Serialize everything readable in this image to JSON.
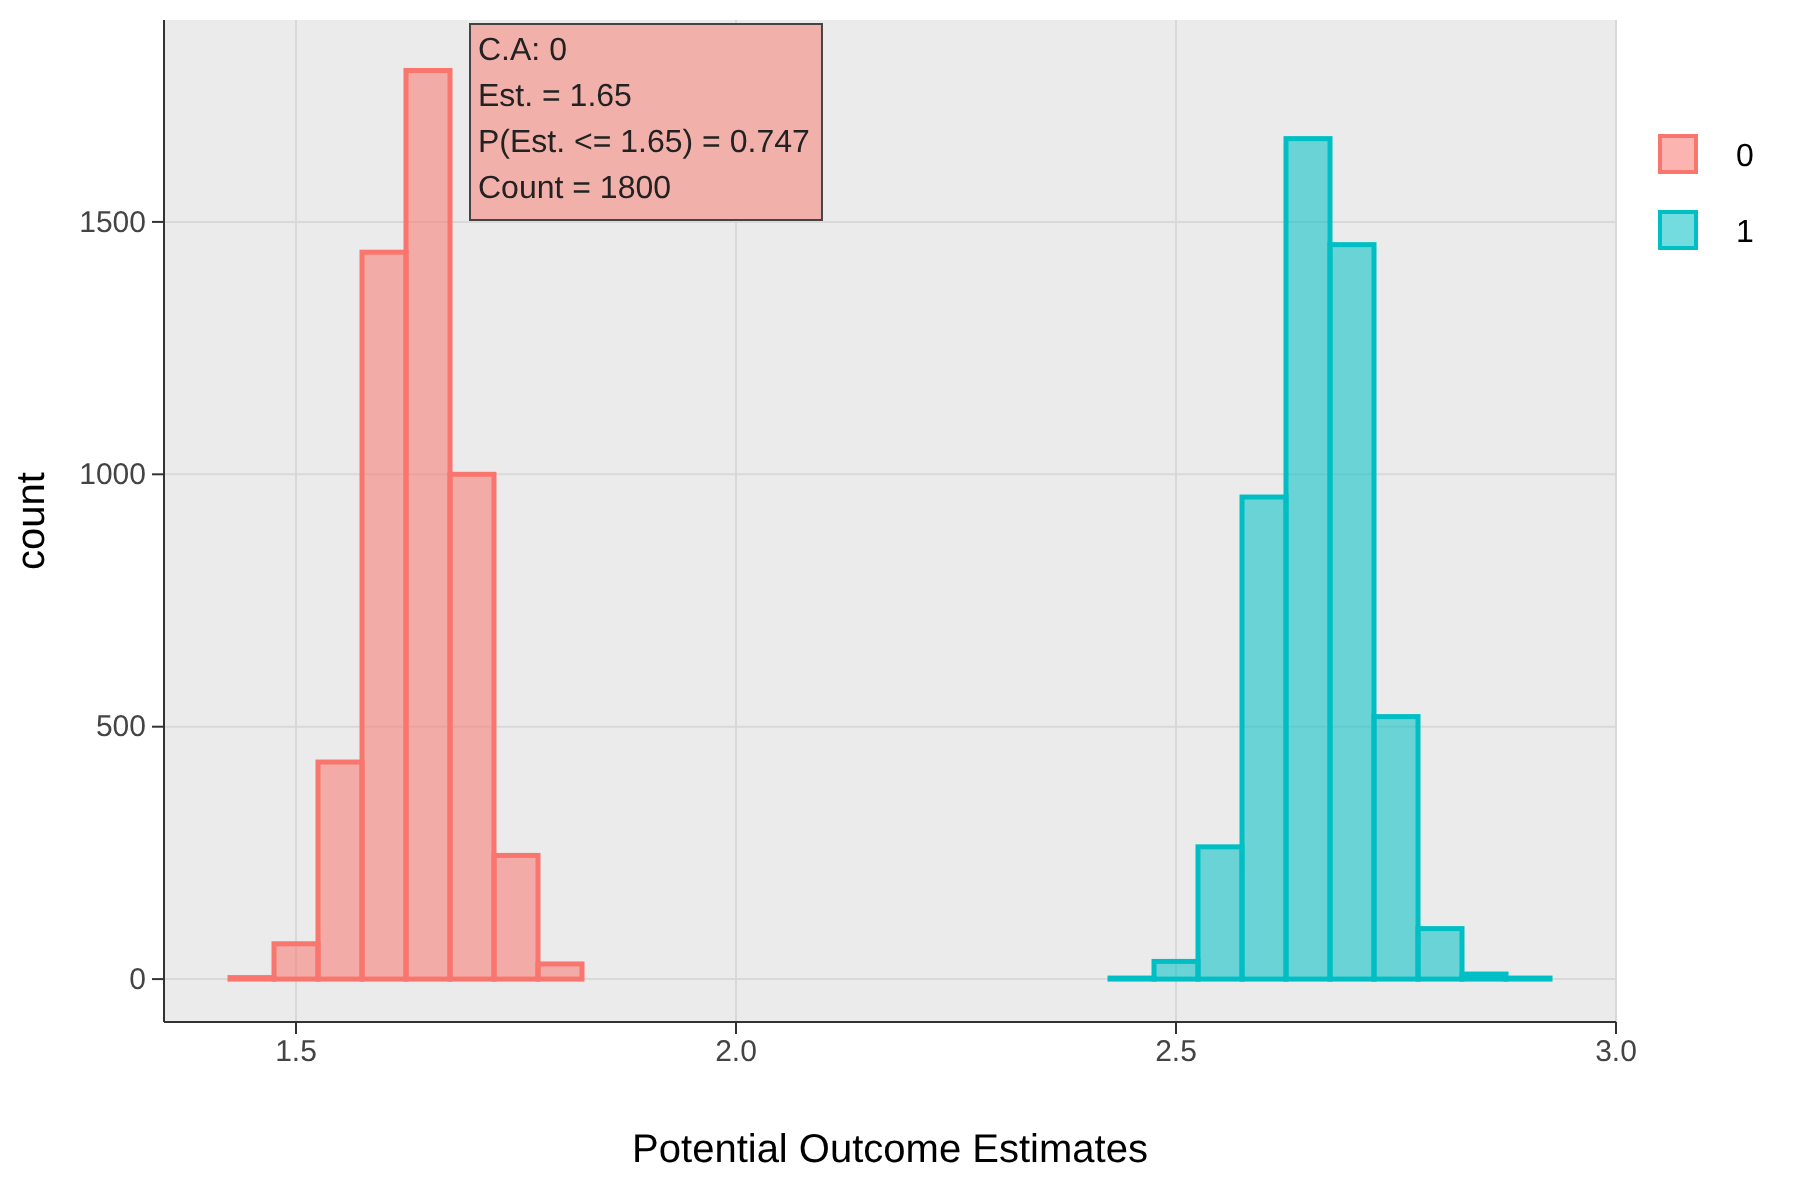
{
  "chart_data": {
    "type": "histogram",
    "xlabel": "Potential Outcome Estimates",
    "ylabel": "count",
    "xlim": [
      1.35,
      3.0
    ],
    "xticks": [
      1.5,
      {
        "value": 2.0,
        "label": "2.0"
      },
      2.5,
      {
        "value": 3.0,
        "label": "3.0"
      }
    ],
    "ylim": [
      -85,
      1900
    ],
    "yticks": [
      0,
      500,
      1000,
      1500
    ],
    "grid": true,
    "legend": "right",
    "bins": [
      1.425,
      1.475,
      1.525,
      1.575,
      1.625,
      1.675,
      1.725,
      1.775,
      1.825,
      1.875,
      1.925,
      1.975,
      2.025,
      2.075,
      2.125,
      2.175,
      2.225,
      2.275,
      2.325,
      2.375,
      2.425,
      2.475,
      2.525,
      2.575,
      2.625,
      2.675,
      2.725,
      2.775,
      2.825,
      2.875,
      2.925
    ],
    "series": [
      {
        "name": "0",
        "color": "#f8766d",
        "values": [
          3,
          70,
          430,
          1440,
          1800,
          1000,
          245,
          30,
          null,
          null,
          null,
          null,
          null,
          null,
          null,
          null,
          null,
          null,
          null,
          null,
          null,
          null,
          null,
          null,
          null,
          null,
          null,
          null,
          null,
          null
        ]
      },
      {
        "name": "1",
        "color": "#00bfc4",
        "values": [
          null,
          null,
          null,
          null,
          null,
          null,
          null,
          null,
          null,
          null,
          null,
          null,
          null,
          null,
          null,
          null,
          null,
          null,
          null,
          null,
          2,
          35,
          262,
          955,
          1665,
          1455,
          520,
          100,
          10,
          2
        ]
      }
    ],
    "annotations": [
      "C.A: 0\nEst. = 1.65\nP(Est. <= 1.65) = 0.747\nCount = 1800"
    ]
  }
}
